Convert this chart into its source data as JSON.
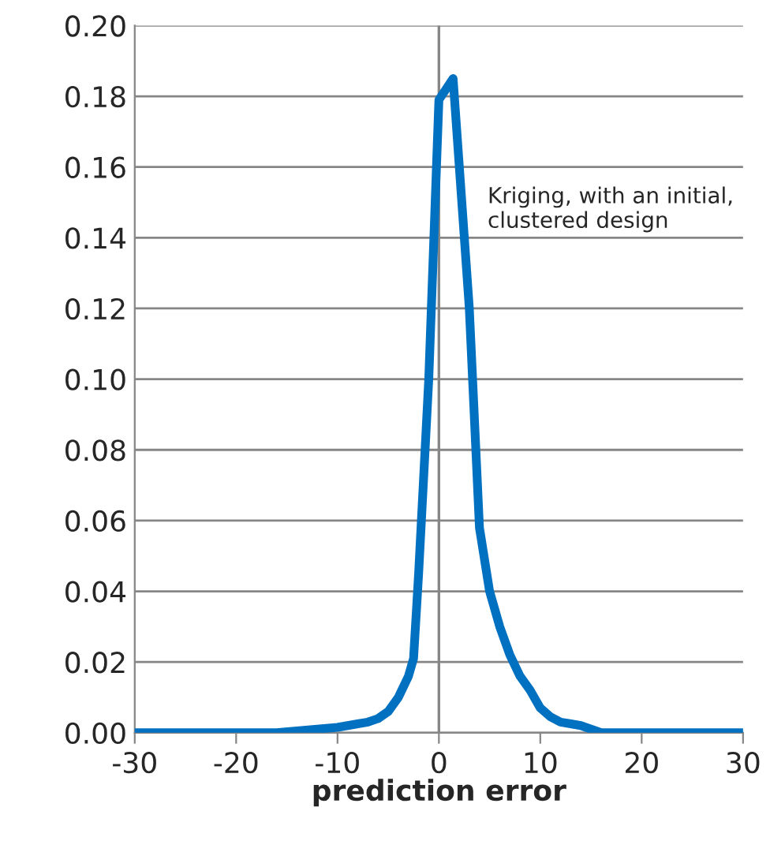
{
  "chart_data": {
    "type": "line",
    "xlabel": "prediction error",
    "annotations": [
      "Kriging, with an initial, clustered design"
    ],
    "x": [
      -30,
      -25,
      -20,
      -18,
      -16,
      -14,
      -12,
      -10,
      -9,
      -8,
      -7,
      -6,
      -5,
      -4,
      -3,
      -2.5,
      -2,
      -1,
      0,
      1.4,
      3,
      4,
      5,
      6,
      7,
      8,
      9,
      10,
      11,
      12,
      13,
      14,
      15,
      16,
      18,
      20,
      25,
      30
    ],
    "series": [
      {
        "color": "#0070c0",
        "values": [
          0,
          0,
          0,
          0,
          0,
          0.0005,
          0.001,
          0.0015,
          0.002,
          0.0025,
          0.003,
          0.004,
          0.006,
          0.01,
          0.016,
          0.021,
          0.045,
          0.1,
          0.179,
          0.185,
          0.12,
          0.058,
          0.04,
          0.03,
          0.022,
          0.016,
          0.012,
          0.007,
          0.0045,
          0.003,
          0.0025,
          0.002,
          0.001,
          0,
          0,
          0,
          0,
          0
        ]
      }
    ],
    "xlim": [
      -30,
      30
    ],
    "xticks": [
      -30,
      -20,
      -10,
      0,
      10,
      20,
      30
    ],
    "ylim": [
      0,
      0.2
    ],
    "yticks": [
      {
        "value": 0,
        "label": "0.00"
      },
      {
        "value": 0.02,
        "label": "0.02"
      },
      {
        "value": 0.04,
        "label": "0.04"
      },
      {
        "value": 0.06,
        "label": "0.06"
      },
      {
        "value": 0.08,
        "label": "0.08"
      },
      {
        "value": 0.1,
        "label": "0.10"
      },
      {
        "value": 0.12,
        "label": "0.12"
      },
      {
        "value": 0.14,
        "label": "0.14"
      },
      {
        "value": 0.16,
        "label": "0.16"
      },
      {
        "value": 0.18,
        "label": "0.18"
      },
      {
        "value": 0.2,
        "label": "0.20"
      }
    ],
    "ref_lines": [
      {
        "axis": "x",
        "value": 0,
        "color": "#868686"
      }
    ],
    "grid": "y",
    "legend": false,
    "line_style": "solid",
    "marker": "none"
  }
}
